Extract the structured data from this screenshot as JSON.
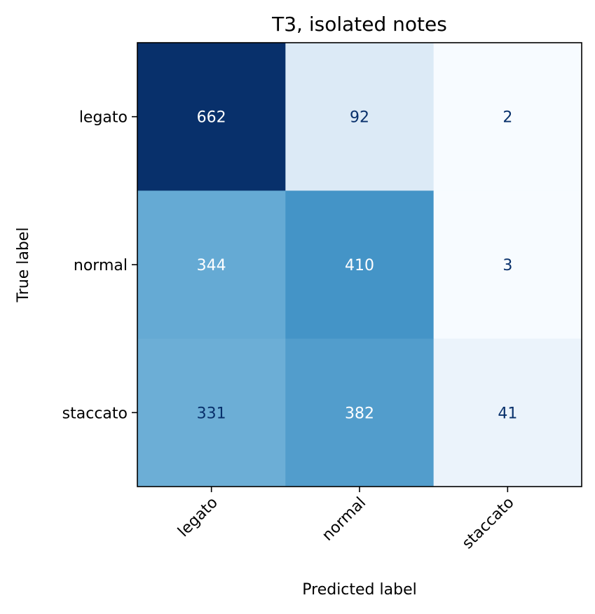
{
  "chart_data": {
    "type": "heatmap",
    "title": "T3, isolated notes",
    "xlabel": "Predicted label",
    "ylabel": "True label",
    "x_categories": [
      "legato",
      "normal",
      "staccato"
    ],
    "y_categories": [
      "legato",
      "normal",
      "staccato"
    ],
    "values": [
      [
        662,
        92,
        2
      ],
      [
        344,
        410,
        3
      ],
      [
        331,
        382,
        41
      ]
    ],
    "colormap": "Blues",
    "vmin": 2,
    "vmax": 662,
    "colorbar": false,
    "grid": false
  }
}
